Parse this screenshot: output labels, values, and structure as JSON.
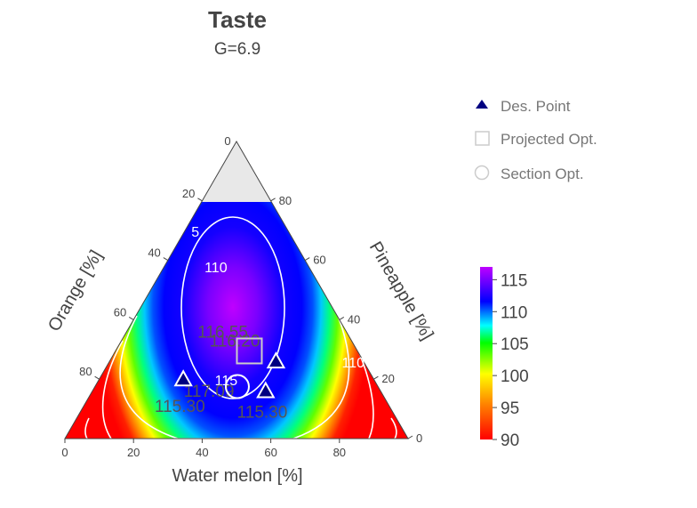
{
  "chart_data": {
    "type": "ternary-contour",
    "title": "Taste",
    "subtitle": "G=6.9",
    "axes": {
      "bottom": {
        "label": "Water melon [%]",
        "ticks": [
          0,
          20,
          40,
          60,
          80
        ]
      },
      "left": {
        "label": "Orange [%]",
        "ticks": [
          20,
          40,
          60,
          80
        ]
      },
      "right": {
        "label": "Pineapple [%]",
        "ticks": [
          0,
          20,
          40,
          60,
          80
        ]
      },
      "apex_label": "0"
    },
    "constraint": {
      "orange_max": 80
    },
    "colorscale": {
      "range": [
        90,
        117
      ],
      "ticks": [
        90,
        95,
        100,
        105,
        110,
        115
      ],
      "colors": [
        "#ff0000",
        "#ff8000",
        "#ffff00",
        "#00ff00",
        "#00ffff",
        "#0000ff",
        "#bf00ff"
      ]
    },
    "contour_labels": [
      {
        "text": "110",
        "watermelon": 16,
        "orange": 28
      },
      {
        "text": "110",
        "watermelon": 72,
        "orange": 4
      },
      {
        "text": "115",
        "watermelon": 38,
        "orange": 44
      },
      {
        "text": "5",
        "watermelon": 4,
        "orange": 28
      }
    ],
    "value_labels": [
      {
        "text": "115.30",
        "watermelon": 29,
        "orange": 62
      },
      {
        "text": "115.30",
        "watermelon": 54,
        "orange": 39
      },
      {
        "text": "117.09",
        "watermelon": 35,
        "orange": 51
      },
      {
        "text": "116.55",
        "watermelon": 29,
        "orange": 37
      },
      {
        "text": "116.20",
        "watermelon": 34,
        "orange": 35
      }
    ],
    "series": [
      {
        "name": "Des. Point",
        "marker": "triangle",
        "color": "#000080",
        "points": [
          {
            "watermelon": 24.5,
            "orange": 55.5
          },
          {
            "watermelon": 50.5,
            "orange": 33.5
          },
          {
            "watermelon": 48.5,
            "orange": 25.5
          }
        ]
      },
      {
        "name": "Projected Opt.",
        "marker": "square",
        "color": "#cccccc",
        "points": [
          {
            "watermelon": 39,
            "orange": 31.5
          }
        ]
      },
      {
        "name": "Section Opt.",
        "marker": "circle",
        "color": "#cccccc",
        "points": [
          {
            "watermelon": 41.5,
            "orange": 41
          }
        ]
      }
    ]
  }
}
